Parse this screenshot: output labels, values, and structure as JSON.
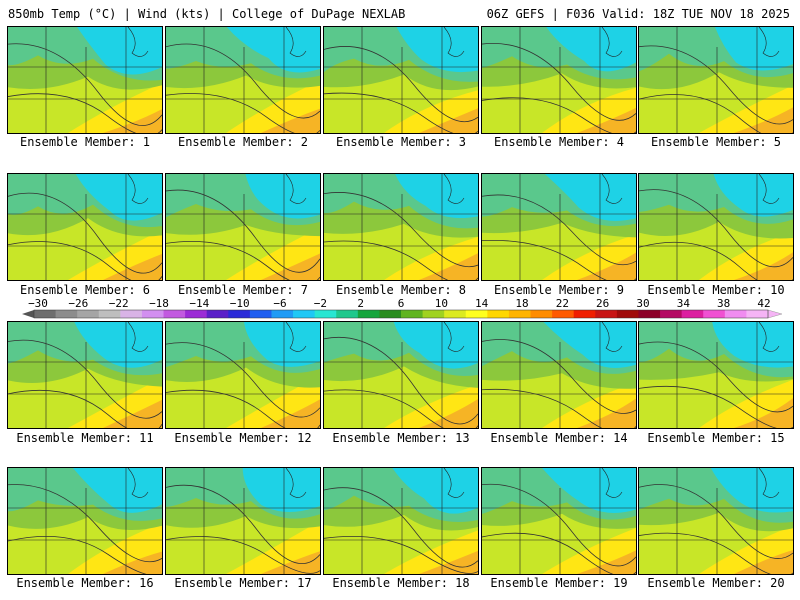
{
  "header": {
    "left": "850mb Temp (°C) | Wind (kts) | College of DuPage NEXLAB",
    "right": "06Z GEFS | F036 Valid: 18Z TUE NOV 18 2025"
  },
  "panels": [
    {
      "member": 1,
      "label": "Ensemble Member: 1"
    },
    {
      "member": 2,
      "label": "Ensemble Member: 2"
    },
    {
      "member": 3,
      "label": "Ensemble Member: 3"
    },
    {
      "member": 4,
      "label": "Ensemble Member: 4"
    },
    {
      "member": 5,
      "label": "Ensemble Member: 5"
    },
    {
      "member": 6,
      "label": "Ensemble Member: 6"
    },
    {
      "member": 7,
      "label": "Ensemble Member: 7"
    },
    {
      "member": 8,
      "label": "Ensemble Member: 8"
    },
    {
      "member": 9,
      "label": "Ensemble Member: 9"
    },
    {
      "member": 10,
      "label": "Ensemble Member: 10"
    },
    {
      "member": 11,
      "label": "Ensemble Member: 11"
    },
    {
      "member": 12,
      "label": "Ensemble Member: 12"
    },
    {
      "member": 13,
      "label": "Ensemble Member: 13"
    },
    {
      "member": 14,
      "label": "Ensemble Member: 14"
    },
    {
      "member": 15,
      "label": "Ensemble Member: 15"
    },
    {
      "member": 16,
      "label": "Ensemble Member: 16"
    },
    {
      "member": 17,
      "label": "Ensemble Member: 17"
    },
    {
      "member": 18,
      "label": "Ensemble Member: 18"
    },
    {
      "member": 19,
      "label": "Ensemble Member: 19"
    },
    {
      "member": 20,
      "label": "Ensemble Member: 20"
    }
  ],
  "colorbar": {
    "ticks": [
      "-30",
      "-26",
      "-22",
      "-18",
      "-14",
      "-10",
      "-6",
      "-2",
      "2",
      "6",
      "10",
      "14",
      "18",
      "22",
      "26",
      "30",
      "34",
      "38",
      "42"
    ],
    "colors": [
      "#6e6e6e",
      "#8c8c8c",
      "#a5a5a5",
      "#bebebe",
      "#d9b3e6",
      "#d28ff0",
      "#c25ae0",
      "#9b2bd6",
      "#5a1fc8",
      "#2a2ad8",
      "#1e5ff0",
      "#1e9bf5",
      "#1ec8f5",
      "#28e6d2",
      "#1ec88c",
      "#14a53c",
      "#2a8c1e",
      "#60b41e",
      "#a0d21e",
      "#dcea1e",
      "#ffff1e",
      "#ffd700",
      "#ffb400",
      "#ff8c00",
      "#ff5a00",
      "#f01e00",
      "#c81414",
      "#a00a0a",
      "#8c0028",
      "#b40a64",
      "#dc1ea0",
      "#f050d2",
      "#f08cf0",
      "#f5b4f5"
    ],
    "field_colors": {
      "cold": "#1ed2e6",
      "cool": "#5ac88c",
      "mid": "#8cc83c",
      "mild": "#c8e628",
      "warm": "#ffe614",
      "hot": "#f5aa28"
    }
  }
}
